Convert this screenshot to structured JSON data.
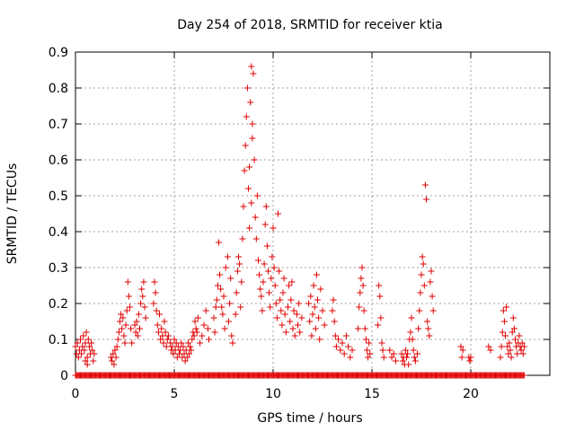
{
  "chart_data": {
    "type": "scatter",
    "title": "Day 254 of 2018, SRMTID for receiver ktia",
    "xlabel": "GPS time / hours",
    "ylabel": "SRMTID / TECUs",
    "xlim": [
      0,
      24
    ],
    "ylim": [
      0,
      0.9
    ],
    "x_ticks": [
      0,
      5,
      10,
      15,
      20
    ],
    "y_ticks": [
      0,
      0.1,
      0.2,
      0.3,
      0.4,
      0.5,
      0.6,
      0.7,
      0.8,
      0.9
    ],
    "x_tick_labels": [
      "0",
      "5",
      "10",
      "15",
      "20"
    ],
    "y_tick_labels": [
      "0",
      "0.1",
      "0.2",
      "0.3",
      "0.4",
      "0.5",
      "0.6",
      "0.7",
      "0.8",
      "0.9"
    ],
    "grid": true,
    "legend": "none",
    "marker": "plus",
    "color": "#e00000",
    "series": [
      {
        "name": "SRMTID",
        "points": [
          [
            0.0,
            0.08
          ],
          [
            0.05,
            0.06
          ],
          [
            0.1,
            0.09
          ],
          [
            0.15,
            0.05
          ],
          [
            0.2,
            0.07
          ],
          [
            0.25,
            0.1
          ],
          [
            0.3,
            0.06
          ],
          [
            0.35,
            0.08
          ],
          [
            0.4,
            0.11
          ],
          [
            0.45,
            0.07
          ],
          [
            0.5,
            0.09
          ],
          [
            0.55,
            0.12
          ],
          [
            0.6,
            0.05
          ],
          [
            0.65,
            0.1
          ],
          [
            0.7,
            0.08
          ],
          [
            0.75,
            0.06
          ],
          [
            0.8,
            0.09
          ],
          [
            0.85,
            0.07
          ],
          [
            0.9,
            0.04
          ],
          [
            0.95,
            0.06
          ],
          [
            0.5,
            0.04
          ],
          [
            0.6,
            0.03
          ],
          [
            1.8,
            0.05
          ],
          [
            1.85,
            0.04
          ],
          [
            1.9,
            0.06
          ],
          [
            1.95,
            0.03
          ],
          [
            2.0,
            0.07
          ],
          [
            2.05,
            0.05
          ],
          [
            2.1,
            0.08
          ],
          [
            2.15,
            0.1
          ],
          [
            2.2,
            0.12
          ],
          [
            2.25,
            0.15
          ],
          [
            2.3,
            0.17
          ],
          [
            2.35,
            0.13
          ],
          [
            2.4,
            0.16
          ],
          [
            2.45,
            0.11
          ],
          [
            2.5,
            0.09
          ],
          [
            2.55,
            0.14
          ],
          [
            2.6,
            0.18
          ],
          [
            2.65,
            0.26
          ],
          [
            2.7,
            0.22
          ],
          [
            2.75,
            0.19
          ],
          [
            2.8,
            0.13
          ],
          [
            2.85,
            0.09
          ],
          [
            3.0,
            0.14
          ],
          [
            3.05,
            0.12
          ],
          [
            3.1,
            0.15
          ],
          [
            3.15,
            0.11
          ],
          [
            3.2,
            0.17
          ],
          [
            3.25,
            0.13
          ],
          [
            3.3,
            0.2
          ],
          [
            3.35,
            0.24
          ],
          [
            3.4,
            0.22
          ],
          [
            3.45,
            0.26
          ],
          [
            3.5,
            0.19
          ],
          [
            3.55,
            0.16
          ],
          [
            3.95,
            0.2
          ],
          [
            4.0,
            0.26
          ],
          [
            4.05,
            0.23
          ],
          [
            4.1,
            0.18
          ],
          [
            4.15,
            0.14
          ],
          [
            4.2,
            0.12
          ],
          [
            4.25,
            0.17
          ],
          [
            4.3,
            0.1
          ],
          [
            4.35,
            0.13
          ],
          [
            4.4,
            0.11
          ],
          [
            4.45,
            0.09
          ],
          [
            4.5,
            0.15
          ],
          [
            4.55,
            0.12
          ],
          [
            4.6,
            0.08
          ],
          [
            4.65,
            0.1
          ],
          [
            4.7,
            0.11
          ],
          [
            4.8,
            0.09
          ],
          [
            4.85,
            0.07
          ],
          [
            4.9,
            0.08
          ],
          [
            4.95,
            0.06
          ],
          [
            5.0,
            0.1
          ],
          [
            5.05,
            0.07
          ],
          [
            5.1,
            0.09
          ],
          [
            5.15,
            0.05
          ],
          [
            5.2,
            0.08
          ],
          [
            5.25,
            0.06
          ],
          [
            5.3,
            0.07
          ],
          [
            5.35,
            0.09
          ],
          [
            5.4,
            0.05
          ],
          [
            5.45,
            0.08
          ],
          [
            5.5,
            0.06
          ],
          [
            5.55,
            0.04
          ],
          [
            5.6,
            0.07
          ],
          [
            5.65,
            0.05
          ],
          [
            5.7,
            0.09
          ],
          [
            5.75,
            0.06
          ],
          [
            5.8,
            0.08
          ],
          [
            5.85,
            0.07
          ],
          [
            5.9,
            0.1
          ],
          [
            5.95,
            0.12
          ],
          [
            6.0,
            0.11
          ],
          [
            6.05,
            0.15
          ],
          [
            6.1,
            0.13
          ],
          [
            6.15,
            0.12
          ],
          [
            6.2,
            0.16
          ],
          [
            6.3,
            0.09
          ],
          [
            6.4,
            0.11
          ],
          [
            6.5,
            0.14
          ],
          [
            6.6,
            0.18
          ],
          [
            6.7,
            0.13
          ],
          [
            6.75,
            0.1
          ],
          [
            7.0,
            0.16
          ],
          [
            7.05,
            0.12
          ],
          [
            7.1,
            0.19
          ],
          [
            7.15,
            0.21
          ],
          [
            7.2,
            0.25
          ],
          [
            7.25,
            0.37
          ],
          [
            7.3,
            0.28
          ],
          [
            7.35,
            0.24
          ],
          [
            7.4,
            0.19
          ],
          [
            7.45,
            0.17
          ],
          [
            7.5,
            0.22
          ],
          [
            7.55,
            0.13
          ],
          [
            7.6,
            0.3
          ],
          [
            7.7,
            0.33
          ],
          [
            7.75,
            0.15
          ],
          [
            7.8,
            0.2
          ],
          [
            7.85,
            0.27
          ],
          [
            7.9,
            0.11
          ],
          [
            7.95,
            0.09
          ],
          [
            8.1,
            0.17
          ],
          [
            8.15,
            0.23
          ],
          [
            8.2,
            0.29
          ],
          [
            8.25,
            0.33
          ],
          [
            8.3,
            0.31
          ],
          [
            8.35,
            0.19
          ],
          [
            8.4,
            0.26
          ],
          [
            8.45,
            0.38
          ],
          [
            8.5,
            0.47
          ],
          [
            8.55,
            0.57
          ],
          [
            8.6,
            0.64
          ],
          [
            8.65,
            0.72
          ],
          [
            8.7,
            0.8
          ],
          [
            8.75,
            0.52
          ],
          [
            8.8,
            0.41
          ],
          [
            8.85,
            0.76
          ],
          [
            8.9,
            0.86
          ],
          [
            8.95,
            0.7
          ],
          [
            9.0,
            0.84
          ],
          [
            9.05,
            0.6
          ],
          [
            9.1,
            0.44
          ],
          [
            9.15,
            0.38
          ],
          [
            9.2,
            0.5
          ],
          [
            9.25,
            0.32
          ],
          [
            9.3,
            0.28
          ],
          [
            9.35,
            0.24
          ],
          [
            9.4,
            0.22
          ],
          [
            9.45,
            0.18
          ],
          [
            8.95,
            0.66
          ],
          [
            8.8,
            0.58
          ],
          [
            8.9,
            0.48
          ],
          [
            9.5,
            0.26
          ],
          [
            9.55,
            0.31
          ],
          [
            9.6,
            0.42
          ],
          [
            9.65,
            0.47
          ],
          [
            9.7,
            0.36
          ],
          [
            9.75,
            0.29
          ],
          [
            9.8,
            0.23
          ],
          [
            9.85,
            0.19
          ],
          [
            9.9,
            0.27
          ],
          [
            9.95,
            0.33
          ],
          [
            10.0,
            0.41
          ],
          [
            10.05,
            0.3
          ],
          [
            10.1,
            0.25
          ],
          [
            10.15,
            0.2
          ],
          [
            10.2,
            0.16
          ],
          [
            10.25,
            0.45
          ],
          [
            10.3,
            0.29
          ],
          [
            10.35,
            0.21
          ],
          [
            10.4,
            0.18
          ],
          [
            10.45,
            0.14
          ],
          [
            10.5,
            0.23
          ],
          [
            10.55,
            0.27
          ],
          [
            10.6,
            0.17
          ],
          [
            10.65,
            0.12
          ],
          [
            10.75,
            0.19
          ],
          [
            10.8,
            0.25
          ],
          [
            10.85,
            0.15
          ],
          [
            10.9,
            0.21
          ],
          [
            10.95,
            0.26
          ],
          [
            11.0,
            0.13
          ],
          [
            11.05,
            0.18
          ],
          [
            11.1,
            0.11
          ],
          [
            11.2,
            0.17
          ],
          [
            11.25,
            0.14
          ],
          [
            11.3,
            0.2
          ],
          [
            11.35,
            0.12
          ],
          [
            11.45,
            0.16
          ],
          [
            11.8,
            0.2
          ],
          [
            11.85,
            0.15
          ],
          [
            11.9,
            0.22
          ],
          [
            11.95,
            0.11
          ],
          [
            12.0,
            0.17
          ],
          [
            12.05,
            0.25
          ],
          [
            12.1,
            0.19
          ],
          [
            12.15,
            0.13
          ],
          [
            12.2,
            0.28
          ],
          [
            12.25,
            0.21
          ],
          [
            12.3,
            0.16
          ],
          [
            12.35,
            0.1
          ],
          [
            12.4,
            0.24
          ],
          [
            12.5,
            0.18
          ],
          [
            12.6,
            0.14
          ],
          [
            13.0,
            0.18
          ],
          [
            13.05,
            0.21
          ],
          [
            13.1,
            0.15
          ],
          [
            13.15,
            0.11
          ],
          [
            13.2,
            0.08
          ],
          [
            13.3,
            0.1
          ],
          [
            13.4,
            0.07
          ],
          [
            13.5,
            0.09
          ],
          [
            13.6,
            0.06
          ],
          [
            13.7,
            0.11
          ],
          [
            13.8,
            0.08
          ],
          [
            13.9,
            0.05
          ],
          [
            14.0,
            0.07
          ],
          [
            14.3,
            0.13
          ],
          [
            14.35,
            0.19
          ],
          [
            14.4,
            0.23
          ],
          [
            14.45,
            0.27
          ],
          [
            14.5,
            0.3
          ],
          [
            14.55,
            0.25
          ],
          [
            14.6,
            0.18
          ],
          [
            14.65,
            0.13
          ],
          [
            14.7,
            0.1
          ],
          [
            14.75,
            0.07
          ],
          [
            14.8,
            0.05
          ],
          [
            14.85,
            0.09
          ],
          [
            14.9,
            0.06
          ],
          [
            15.3,
            0.14
          ],
          [
            15.35,
            0.25
          ],
          [
            15.4,
            0.22
          ],
          [
            15.45,
            0.16
          ],
          [
            15.5,
            0.09
          ],
          [
            15.55,
            0.07
          ],
          [
            15.6,
            0.05
          ],
          [
            15.9,
            0.07
          ],
          [
            16.0,
            0.05
          ],
          [
            16.1,
            0.06
          ],
          [
            16.2,
            0.04
          ],
          [
            16.5,
            0.06
          ],
          [
            16.55,
            0.04
          ],
          [
            16.6,
            0.05
          ],
          [
            16.65,
            0.03
          ],
          [
            16.7,
            0.07
          ],
          [
            16.75,
            0.05
          ],
          [
            16.8,
            0.06
          ],
          [
            16.85,
            0.03
          ],
          [
            16.9,
            0.1
          ],
          [
            16.95,
            0.12
          ],
          [
            17.0,
            0.16
          ],
          [
            17.05,
            0.1
          ],
          [
            17.1,
            0.07
          ],
          [
            17.15,
            0.05
          ],
          [
            17.2,
            0.04
          ],
          [
            17.3,
            0.06
          ],
          [
            17.35,
            0.13
          ],
          [
            17.4,
            0.18
          ],
          [
            17.45,
            0.23
          ],
          [
            17.5,
            0.28
          ],
          [
            17.55,
            0.33
          ],
          [
            17.6,
            0.31
          ],
          [
            17.65,
            0.25
          ],
          [
            17.7,
            0.53
          ],
          [
            17.75,
            0.49
          ],
          [
            17.8,
            0.15
          ],
          [
            17.85,
            0.13
          ],
          [
            17.9,
            0.11
          ],
          [
            17.95,
            0.26
          ],
          [
            18.0,
            0.29
          ],
          [
            18.05,
            0.22
          ],
          [
            18.1,
            0.18
          ],
          [
            19.5,
            0.08
          ],
          [
            19.55,
            0.05
          ],
          [
            19.6,
            0.07
          ],
          [
            19.9,
            0.05
          ],
          [
            19.95,
            0.04
          ],
          [
            20.0,
            0.05
          ],
          [
            20.9,
            0.08
          ],
          [
            21.0,
            0.07
          ],
          [
            21.5,
            0.05
          ],
          [
            21.55,
            0.08
          ],
          [
            21.6,
            0.12
          ],
          [
            21.65,
            0.18
          ],
          [
            21.7,
            0.15
          ],
          [
            21.75,
            0.11
          ],
          [
            21.8,
            0.19
          ],
          [
            21.85,
            0.08
          ],
          [
            21.9,
            0.06
          ],
          [
            21.95,
            0.09
          ],
          [
            22.0,
            0.07
          ],
          [
            22.05,
            0.05
          ],
          [
            22.1,
            0.12
          ],
          [
            22.15,
            0.16
          ],
          [
            22.2,
            0.13
          ],
          [
            22.25,
            0.1
          ],
          [
            22.3,
            0.08
          ],
          [
            22.35,
            0.06
          ],
          [
            22.4,
            0.09
          ],
          [
            22.45,
            0.11
          ],
          [
            22.5,
            0.08
          ],
          [
            22.55,
            0.07
          ],
          [
            22.6,
            0.09
          ],
          [
            22.65,
            0.06
          ],
          [
            22.7,
            0.08
          ]
        ],
        "zero_band_ranges": [
          [
            0.0,
            22.7
          ]
        ]
      }
    ]
  }
}
